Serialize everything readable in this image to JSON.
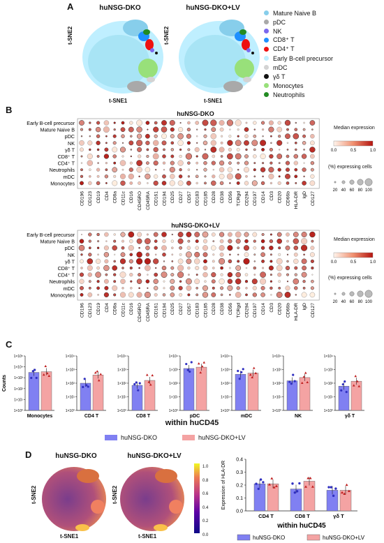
{
  "panels": {
    "A": "A",
    "B": "B",
    "C": "C",
    "D": "D"
  },
  "panelA": {
    "titles": [
      "huNSG-DKO",
      "huNSG-DKO+LV"
    ],
    "xlabel": "t-SNE1",
    "ylabel": "t-SNE2",
    "legend": [
      {
        "label": "Mature Naive B",
        "color": "#87ceeb"
      },
      {
        "label": "pDC",
        "color": "#a9a9a9"
      },
      {
        "label": "NK",
        "color": "#7b68ee"
      },
      {
        "label": "CD8⁺ T",
        "color": "#1e90ff"
      },
      {
        "label": "CD4⁺ T",
        "color": "#ee1111"
      },
      {
        "label": "Early B-cell precursor",
        "color": "#bfefff"
      },
      {
        "label": "mDC",
        "color": "#d3d3d3"
      },
      {
        "label": "γδ T",
        "color": "#111111"
      },
      {
        "label": "Monocytes",
        "color": "#98e07a"
      },
      {
        "label": "Neutrophils",
        "color": "#228b22"
      }
    ]
  },
  "panelB": {
    "titles": [
      "huNSG-DKO",
      "huNSG-DKO+LV"
    ],
    "rows": [
      "Early B-cell precursor",
      "Mature Naive B",
      "pDC",
      "NK",
      "γδ T",
      "CD8⁺ T",
      "CD4⁺ T",
      "Neutrophils",
      "mDC",
      "Monocytes"
    ],
    "rows_bottom": [
      "Early B-cell precursor",
      "Mature Naive B",
      "pDC",
      "NK",
      "γδ T",
      "CD8⁺ T",
      "CD4⁺ T",
      "Neutrophils",
      "mDC",
      "Monocytes"
    ],
    "markers": [
      "CD196",
      "CD123",
      "CD19",
      "CD4",
      "CD8a",
      "CD11c",
      "CD16",
      "CD45RO",
      "CD45RA",
      "CD161",
      "CD194",
      "CD25",
      "CD27",
      "CD57",
      "CD183",
      "CD185",
      "CD28",
      "CD38",
      "CD56",
      "TCRgd",
      "CD294",
      "CD197",
      "CD14",
      "CD3",
      "CD20",
      "CD66b",
      "HLA-DR",
      "IgD",
      "CD127"
    ],
    "legend_title": "Median expression",
    "legend_ticks": [
      "0.0",
      "0.5",
      "1.0"
    ],
    "size_title": "(%) expressing cells",
    "size_ticks": [
      "20",
      "40",
      "60",
      "80",
      "100"
    ]
  },
  "panelC": {
    "ylabel": "Counts",
    "footer": "within huCD45",
    "series": [
      "huNSG-DKO",
      "huNSG-DKO+LV"
    ],
    "colors": [
      "#8080f2",
      "#f4a3a3"
    ],
    "subplots": [
      {
        "label": "Monocytes",
        "yticks": [
          "1×10⁵",
          "1×10⁴",
          "1×10³",
          "1×10²",
          "1×10¹",
          "1×10⁰"
        ],
        "ymax_exp": 5,
        "values": [
          3100,
          3600
        ]
      },
      {
        "label": "CD4 T",
        "yticks": [
          "1×10⁴",
          "1×10³",
          "1×10²",
          "1×10¹",
          "1×10⁰"
        ],
        "ymax_exp": 4,
        "values": [
          100,
          400
        ]
      },
      {
        "label": "CD8 T",
        "yticks": [
          "1×10⁴",
          "1×10³",
          "1×10²",
          "1×10¹",
          "1×10⁰"
        ],
        "ymax_exp": 4,
        "values": [
          70,
          160
        ]
      },
      {
        "label": "pDC",
        "yticks": [
          "1×10⁴",
          "1×10³",
          "1×10²",
          "1×10¹",
          "1×10⁰"
        ],
        "ymax_exp": 4,
        "values": [
          1200,
          1500
        ]
      },
      {
        "label": "mDC",
        "yticks": [
          "1×10⁴",
          "1×10³",
          "1×10²",
          "1×10¹",
          "1×10⁰"
        ],
        "ymax_exp": 4,
        "values": [
          450,
          550
        ]
      },
      {
        "label": "NK",
        "yticks": [
          "1×10⁴",
          "1×10³",
          "1×10²",
          "1×10¹",
          "1×10⁰"
        ],
        "ymax_exp": 4,
        "values": [
          150,
          260
        ]
      },
      {
        "label": "γδ T",
        "yticks": [
          "1×10⁴",
          "1×10³",
          "1×10²",
          "1×10¹",
          "1×10⁰"
        ],
        "ymax_exp": 4,
        "values": [
          60,
          140
        ]
      }
    ]
  },
  "panelD": {
    "titles": [
      "huNSG-DKO",
      "huNSG-DKO+LV"
    ],
    "xlabel": "t-SNE1",
    "ylabel": "t-SNE2",
    "colorbar_ticks": [
      "1.0",
      "0.8",
      "0.6",
      "0.4",
      "0.2",
      "0.0"
    ],
    "bar_ylabel": "Expression of HLA-DR",
    "bar_yticks": [
      "0.4",
      "0.3",
      "0.2",
      "0.1",
      "0.0"
    ],
    "footer": "within huCD45"
  },
  "chart_data": [
    {
      "type": "bar",
      "title": "",
      "ylabel": "Counts",
      "xlabel": "within huCD45",
      "yscale": "log",
      "categories": [
        "Monocytes",
        "CD4 T",
        "CD8 T",
        "pDC",
        "mDC",
        "NK",
        "γδ T"
      ],
      "series": [
        {
          "name": "huNSG-DKO",
          "values": [
            3100,
            100,
            70,
            1200,
            450,
            150,
            60
          ]
        },
        {
          "name": "huNSG-DKO+LV",
          "values": [
            3600,
            400,
            160,
            1500,
            550,
            260,
            140
          ]
        }
      ]
    },
    {
      "type": "bar",
      "title": "",
      "ylabel": "Expression of HLA-DR",
      "xlabel": "within huCD45",
      "ylim": [
        0,
        0.4
      ],
      "categories": [
        "CD4 T",
        "CD8 T",
        "γδ T"
      ],
      "series": [
        {
          "name": "huNSG-DKO",
          "values": [
            0.21,
            0.17,
            0.16
          ]
        },
        {
          "name": "huNSG-DKO+LV",
          "values": [
            0.21,
            0.23,
            0.16
          ]
        }
      ]
    }
  ]
}
